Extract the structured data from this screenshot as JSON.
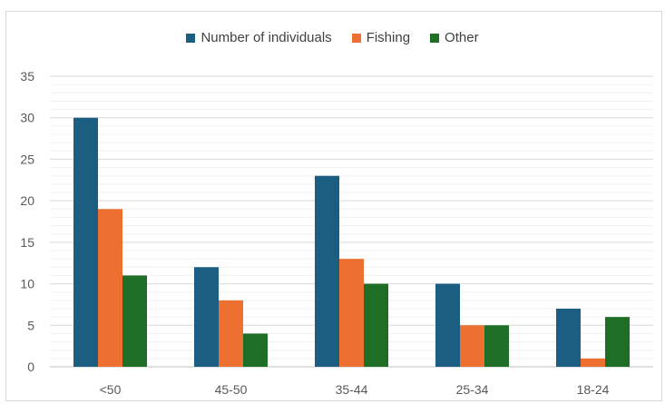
{
  "chart_data": {
    "type": "bar",
    "categories": [
      "<50",
      "45-50",
      "35-44",
      "25-34",
      "18-24"
    ],
    "series": [
      {
        "name": "Number of individuals",
        "color": "#1b5e82",
        "values": [
          30,
          12,
          23,
          10,
          7
        ]
      },
      {
        "name": "Fishing",
        "color": "#ed7031",
        "values": [
          19,
          8,
          13,
          5,
          1
        ]
      },
      {
        "name": "Other",
        "color": "#1e6f25",
        "values": [
          11,
          4,
          10,
          5,
          6
        ]
      }
    ],
    "title": "",
    "xlabel": "",
    "ylabel": "",
    "ylim": [
      0,
      35
    ],
    "yticks": [
      0,
      5,
      10,
      15,
      20,
      25,
      30,
      35
    ],
    "grid": true,
    "legend_position": "top"
  }
}
